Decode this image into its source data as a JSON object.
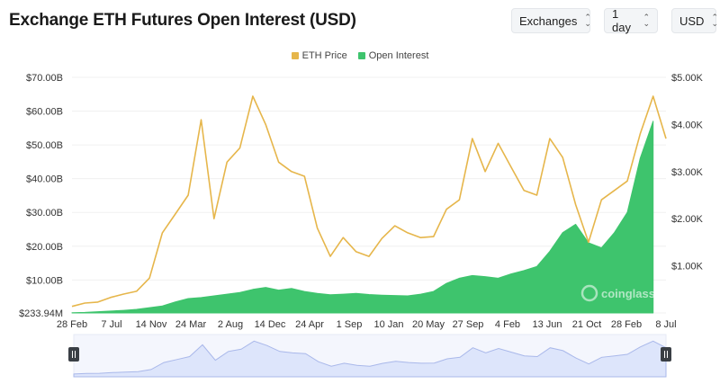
{
  "title": "Exchange ETH Futures Open Interest (USD)",
  "controls": {
    "exchanges": "Exchanges",
    "interval": "1 day",
    "currency": "USD"
  },
  "colors": {
    "price": "#e6b64b",
    "open_interest": "#3ec46d",
    "navigator_fill": "#dde5fb",
    "navigator_line": "#a9b8ea"
  },
  "watermark": "coinglass",
  "chart_data": {
    "type": "area",
    "legend": [
      "ETH Price",
      "Open Interest"
    ],
    "legend_position": "top-center",
    "x_ticks": [
      "28 Feb",
      "7 Jul",
      "14 Nov",
      "24 Mar",
      "2 Aug",
      "14 Dec",
      "24 Apr",
      "1 Sep",
      "10 Jan",
      "20 May",
      "27 Sep",
      "4 Feb",
      "13 Jun",
      "21 Oct",
      "28 Feb",
      "8 Jul"
    ],
    "y_left": {
      "ticks": [
        0.23394,
        10,
        20,
        30,
        40,
        50,
        60,
        70
      ],
      "tick_labels": [
        "$233.94M",
        "$10.00B",
        "$20.00B",
        "$30.00B",
        "$40.00B",
        "$50.00B",
        "$60.00B",
        "$70.00B"
      ],
      "range": [
        0.23394,
        70
      ],
      "unit": "B USD"
    },
    "y_right": {
      "ticks": [
        1000,
        2000,
        3000,
        4000,
        5000
      ],
      "tick_labels": [
        "$1.00K",
        "$2.00K",
        "$3.00K",
        "$4.00K",
        "$5.00K"
      ],
      "range": [
        0,
        5000
      ]
    },
    "grid": true,
    "series": [
      {
        "name": "Open Interest",
        "type": "area",
        "axis": "left",
        "points": [
          [
            0,
            0.3
          ],
          [
            1,
            0.4
          ],
          [
            2,
            0.6
          ],
          [
            3,
            0.8
          ],
          [
            4,
            1.0
          ],
          [
            5,
            1.3
          ],
          [
            6,
            1.8
          ],
          [
            7,
            2.3
          ],
          [
            8,
            3.5
          ],
          [
            9,
            4.5
          ],
          [
            10,
            4.8
          ],
          [
            11,
            5.3
          ],
          [
            12,
            5.8
          ],
          [
            13,
            6.3
          ],
          [
            14,
            7.2
          ],
          [
            15,
            7.8
          ],
          [
            16,
            7.0
          ],
          [
            17,
            7.5
          ],
          [
            18,
            6.6
          ],
          [
            19,
            6.0
          ],
          [
            20,
            5.6
          ],
          [
            21,
            5.8
          ],
          [
            22,
            6.0
          ],
          [
            23,
            5.7
          ],
          [
            24,
            5.5
          ],
          [
            25,
            5.4
          ],
          [
            26,
            5.3
          ],
          [
            27,
            5.8
          ],
          [
            28,
            6.6
          ],
          [
            29,
            9.0
          ],
          [
            30,
            10.5
          ],
          [
            31,
            11.3
          ],
          [
            32,
            11.0
          ],
          [
            33,
            10.5
          ],
          [
            34,
            11.8
          ],
          [
            35,
            12.8
          ],
          [
            36,
            14.0
          ],
          [
            37,
            18.5
          ],
          [
            38,
            24.0
          ],
          [
            39,
            26.5
          ],
          [
            40,
            21.0
          ],
          [
            41,
            19.5
          ],
          [
            42,
            24.0
          ],
          [
            43,
            30.0
          ],
          [
            44,
            46.0
          ],
          [
            45,
            57.0
          ]
        ]
      },
      {
        "name": "ETH Price",
        "type": "line",
        "axis": "right",
        "points": [
          [
            0,
            140
          ],
          [
            1,
            210
          ],
          [
            2,
            230
          ],
          [
            3,
            330
          ],
          [
            4,
            400
          ],
          [
            5,
            460
          ],
          [
            6,
            740
          ],
          [
            7,
            1700
          ],
          [
            8,
            2100
          ],
          [
            9,
            2500
          ],
          [
            10,
            4100
          ],
          [
            11,
            2000
          ],
          [
            12,
            3200
          ],
          [
            13,
            3500
          ],
          [
            14,
            4600
          ],
          [
            15,
            4000
          ],
          [
            16,
            3200
          ],
          [
            17,
            3000
          ],
          [
            18,
            2900
          ],
          [
            19,
            1800
          ],
          [
            20,
            1200
          ],
          [
            21,
            1600
          ],
          [
            22,
            1300
          ],
          [
            23,
            1200
          ],
          [
            24,
            1580
          ],
          [
            25,
            1850
          ],
          [
            26,
            1700
          ],
          [
            27,
            1600
          ],
          [
            28,
            1620
          ],
          [
            29,
            2200
          ],
          [
            30,
            2400
          ],
          [
            31,
            3700
          ],
          [
            32,
            3000
          ],
          [
            33,
            3600
          ],
          [
            34,
            3100
          ],
          [
            35,
            2600
          ],
          [
            36,
            2500
          ],
          [
            37,
            3700
          ],
          [
            38,
            3300
          ],
          [
            39,
            2300
          ],
          [
            40,
            1500
          ],
          [
            41,
            2400
          ],
          [
            42,
            2600
          ],
          [
            43,
            2800
          ],
          [
            44,
            3800
          ],
          [
            45,
            4600
          ],
          [
            46,
            3700
          ]
        ]
      }
    ]
  }
}
